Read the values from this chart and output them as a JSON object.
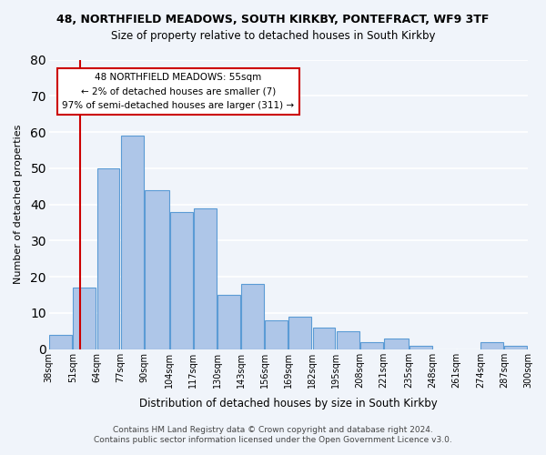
{
  "title": "48, NORTHFIELD MEADOWS, SOUTH KIRKBY, PONTEFRACT, WF9 3TF",
  "subtitle": "Size of property relative to detached houses in South Kirkby",
  "xlabel": "Distribution of detached houses by size in South Kirkby",
  "ylabel": "Number of detached properties",
  "bin_labels": [
    "38sqm",
    "51sqm",
    "64sqm",
    "77sqm",
    "90sqm",
    "104sqm",
    "117sqm",
    "130sqm",
    "143sqm",
    "156sqm",
    "169sqm",
    "182sqm",
    "195sqm",
    "208sqm",
    "221sqm",
    "235sqm",
    "248sqm",
    "261sqm",
    "274sqm",
    "287sqm",
    "300sqm"
  ],
  "bin_edges": [
    38,
    51,
    64,
    77,
    90,
    104,
    117,
    130,
    143,
    156,
    169,
    182,
    195,
    208,
    221,
    235,
    248,
    261,
    274,
    287,
    300
  ],
  "bar_values": [
    4,
    17,
    50,
    59,
    44,
    38,
    39,
    15,
    18,
    8,
    9,
    6,
    5,
    2,
    3,
    1,
    0,
    0,
    2,
    1
  ],
  "bar_color": "#aec6e8",
  "bar_edge_color": "#5b9bd5",
  "vline_x": 55,
  "vline_color": "#cc0000",
  "annotation_text": "48 NORTHFIELD MEADOWS: 55sqm\n← 2% of detached houses are smaller (7)\n97% of semi-detached houses are larger (311) →",
  "annotation_box_color": "#ffffff",
  "annotation_box_edge": "#cc0000",
  "ylim": [
    0,
    80
  ],
  "yticks": [
    0,
    10,
    20,
    30,
    40,
    50,
    60,
    70,
    80
  ],
  "bg_color": "#f0f4fa",
  "grid_color": "#ffffff",
  "footer_line1": "Contains HM Land Registry data © Crown copyright and database right 2024.",
  "footer_line2": "Contains public sector information licensed under the Open Government Licence v3.0."
}
